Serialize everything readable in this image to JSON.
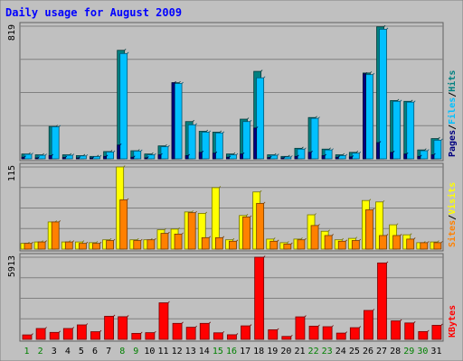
{
  "chart_data": {
    "type": "bar",
    "title": "Daily usage for August 2009",
    "categories": [
      "1",
      "2",
      "3",
      "4",
      "5",
      "6",
      "7",
      "8",
      "9",
      "10",
      "11",
      "12",
      "13",
      "14",
      "15",
      "16",
      "17",
      "18",
      "19",
      "20",
      "21",
      "22",
      "23",
      "24",
      "25",
      "26",
      "27",
      "28",
      "29",
      "30",
      "31"
    ],
    "weekend_days": [
      "1",
      "2",
      "8",
      "9",
      "15",
      "16",
      "22",
      "23",
      "29",
      "30"
    ],
    "panels": [
      {
        "id": "hits_files_pages",
        "max_label": "819",
        "ylim": [
          0,
          819
        ],
        "axis_labels": [
          "Pages",
          "Files",
          "Hits"
        ],
        "series": [
          {
            "name": "Hits",
            "color": "#008080",
            "values": [
              30,
              25,
              200,
              25,
              20,
              15,
              45,
              670,
              50,
              30,
              80,
              470,
              230,
              170,
              165,
              30,
              245,
              540,
              25,
              15,
              65,
              255,
              60,
              25,
              40,
              530,
              815,
              360,
              355,
              55,
              125
            ]
          },
          {
            "name": "Files",
            "color": "#00c0ff",
            "values": [
              28,
              22,
              198,
              22,
              18,
              14,
              42,
              650,
              48,
              25,
              75,
              465,
              210,
              165,
              160,
              25,
              230,
              500,
              22,
              12,
              60,
              250,
              55,
              20,
              35,
              520,
              800,
              355,
              350,
              50,
              115
            ]
          },
          {
            "name": "Pages",
            "color": "#000080",
            "values": [
              10,
              5,
              20,
              8,
              5,
              5,
              15,
              85,
              10,
              6,
              25,
              470,
              20,
              40,
              35,
              10,
              30,
              190,
              8,
              4,
              15,
              40,
              20,
              10,
              12,
              525,
              100,
              40,
              30,
              15,
              25
            ]
          }
        ]
      },
      {
        "id": "visits_sites",
        "max_label": "115",
        "ylim": [
          0,
          115
        ],
        "axis_labels": [
          "Sites",
          "Visits"
        ],
        "series": [
          {
            "name": "Visits",
            "color": "#ffff00",
            "values": [
              8,
              10,
              38,
              10,
              10,
              9,
              13,
              115,
              13,
              13,
              27,
              28,
              52,
              50,
              86,
              13,
              47,
              80,
              14,
              9,
              14,
              48,
              25,
              13,
              15,
              68,
              66,
              34,
              20,
              9,
              10
            ]
          },
          {
            "name": "Sites",
            "color": "#ff8000",
            "values": [
              8,
              10,
              38,
              10,
              8,
              8,
              12,
              69,
              12,
              13,
              22,
              21,
              51,
              16,
              16,
              11,
              45,
              64,
              11,
              7,
              13,
              33,
              19,
              11,
              12,
              55,
              19,
              19,
              14,
              9,
              9
            ]
          }
        ]
      },
      {
        "id": "kbytes",
        "max_label": "5913",
        "ylim": [
          0,
          5913
        ],
        "axis_labels": [
          "KBytes"
        ],
        "series": [
          {
            "name": "KBytes",
            "color": "#ff0000",
            "values": [
              320,
              780,
              500,
              780,
              1040,
              550,
              1660,
              1630,
              430,
              480,
              2630,
              1150,
              870,
              1150,
              470,
              330,
              970,
              5913,
              690,
              210,
              1620,
              950,
              910,
              450,
              840,
              2080,
              5500,
              1330,
              1180,
              560,
              1010
            ]
          }
        ]
      }
    ]
  }
}
